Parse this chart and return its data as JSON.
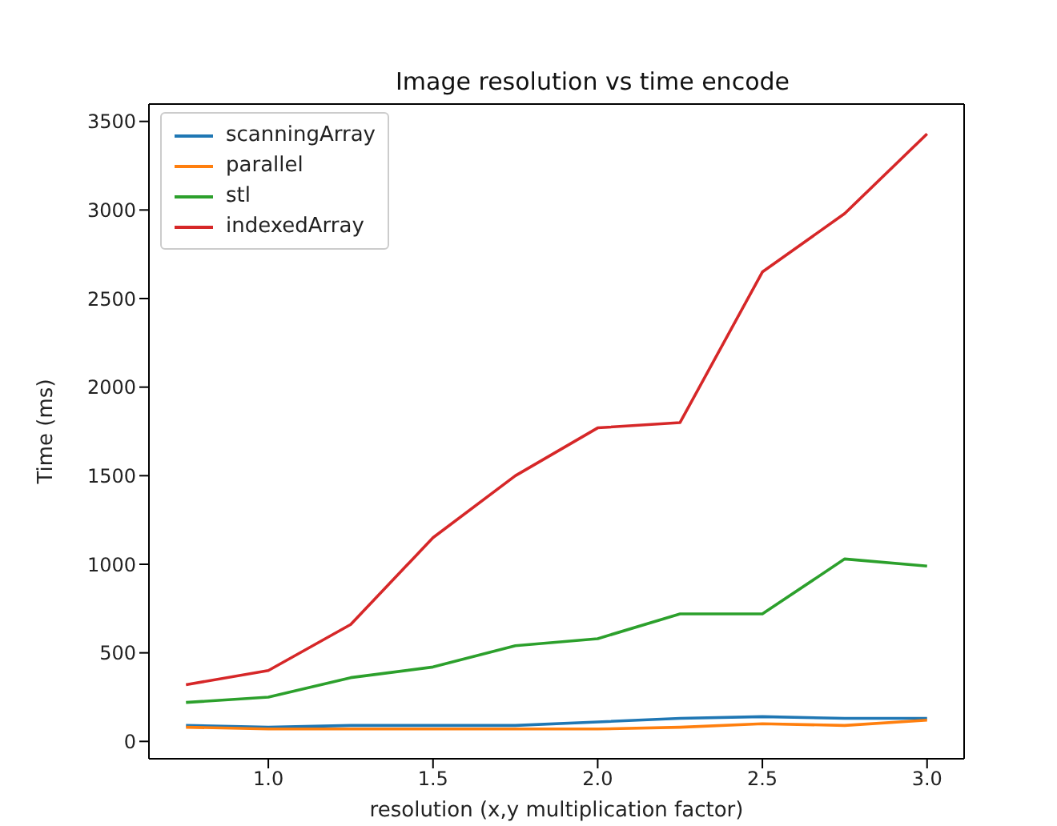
{
  "chart_data": {
    "type": "line",
    "title": "Image resolution vs time encode",
    "xlabel": "resolution (x,y multiplication factor)",
    "ylabel": "Time (ms)",
    "x": [
      0.75,
      1.0,
      1.25,
      1.5,
      1.75,
      2.0,
      2.25,
      2.5,
      2.75,
      3.0
    ],
    "series": [
      {
        "name": "scanningArray",
        "color": "#1f77b4",
        "values": [
          90,
          80,
          90,
          90,
          90,
          110,
          130,
          140,
          130,
          130
        ]
      },
      {
        "name": "parallel",
        "color": "#ff7f0e",
        "values": [
          80,
          70,
          70,
          70,
          70,
          70,
          80,
          100,
          90,
          120
        ]
      },
      {
        "name": "stl",
        "color": "#2ca02c",
        "values": [
          220,
          250,
          360,
          420,
          540,
          580,
          720,
          720,
          1030,
          990
        ]
      },
      {
        "name": "indexedArray",
        "color": "#d62728",
        "values": [
          320,
          400,
          660,
          1150,
          1500,
          1770,
          1800,
          2650,
          2980,
          3430
        ]
      }
    ],
    "xlim": [
      0.6375,
      3.1125
    ],
    "xticks": [
      {
        "value": 1.0,
        "label": "1.0"
      },
      {
        "value": 1.5,
        "label": "1.5"
      },
      {
        "value": 2.0,
        "label": "2.0"
      },
      {
        "value": 2.5,
        "label": "2.5"
      },
      {
        "value": 3.0,
        "label": "3.0"
      }
    ],
    "ylim": [
      -98,
      3598
    ],
    "yticks": [
      0,
      500,
      1000,
      1500,
      2000,
      2500,
      3000,
      3500
    ],
    "legend": "top left",
    "marker": "none",
    "line_style": "solid"
  }
}
